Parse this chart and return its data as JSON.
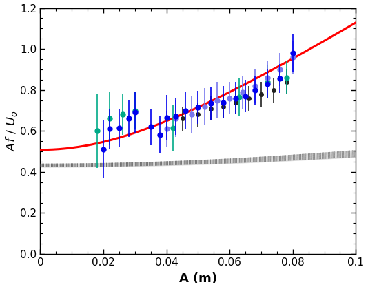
{
  "xlabel": "A (m)",
  "ylabel": "Af / U_o",
  "xlim": [
    0,
    0.1
  ],
  "ylim": [
    0,
    1.2
  ],
  "xticks": [
    0,
    0.02,
    0.04,
    0.06,
    0.08,
    0.1
  ],
  "yticks": [
    0,
    0.2,
    0.4,
    0.6,
    0.8,
    1.0,
    1.2
  ],
  "blue_dark_data": {
    "x": [
      0.02,
      0.022,
      0.025,
      0.028,
      0.03,
      0.035,
      0.038,
      0.04,
      0.043,
      0.046,
      0.05,
      0.054,
      0.058,
      0.062,
      0.065,
      0.068,
      0.072,
      0.076,
      0.08
    ],
    "y": [
      0.51,
      0.61,
      0.615,
      0.66,
      0.69,
      0.62,
      0.58,
      0.665,
      0.67,
      0.7,
      0.715,
      0.735,
      0.74,
      0.76,
      0.77,
      0.8,
      0.83,
      0.855,
      0.98
    ],
    "yerr": [
      0.14,
      0.1,
      0.09,
      0.09,
      0.1,
      0.09,
      0.09,
      0.11,
      0.09,
      0.09,
      0.08,
      0.08,
      0.08,
      0.08,
      0.08,
      0.07,
      0.07,
      0.07,
      0.09
    ],
    "color": "#0000ee"
  },
  "blue_light_data": {
    "x": [
      0.04,
      0.043,
      0.048,
      0.052,
      0.056,
      0.06,
      0.064,
      0.068,
      0.072,
      0.076,
      0.08
    ],
    "y": [
      0.61,
      0.66,
      0.68,
      0.72,
      0.75,
      0.76,
      0.79,
      0.82,
      0.86,
      0.9,
      0.96
    ],
    "yerr": [
      0.09,
      0.09,
      0.09,
      0.09,
      0.09,
      0.08,
      0.08,
      0.08,
      0.08,
      0.08,
      0.08
    ],
    "color": "#7777ee"
  },
  "teal_data": {
    "x": [
      0.018,
      0.022,
      0.026,
      0.03,
      0.042,
      0.063,
      0.072,
      0.078
    ],
    "y": [
      0.6,
      0.66,
      0.68,
      0.7,
      0.615,
      0.765,
      0.84,
      0.86
    ],
    "yerr": [
      0.18,
      0.13,
      0.1,
      0.09,
      0.11,
      0.09,
      0.08,
      0.08
    ],
    "color": "#00aa88"
  },
  "black_data": {
    "x": [
      0.045,
      0.05,
      0.054,
      0.058,
      0.062,
      0.066,
      0.07,
      0.074,
      0.078
    ],
    "y": [
      0.66,
      0.68,
      0.71,
      0.72,
      0.74,
      0.76,
      0.78,
      0.8,
      0.84
    ],
    "yerr": [
      0.06,
      0.06,
      0.06,
      0.06,
      0.06,
      0.06,
      0.06,
      0.06,
      0.06
    ],
    "color": "#222222"
  },
  "red_line": {
    "A0": 0.508,
    "b": 10.08,
    "comment": "St = sqrt(A0^2 + b^2 * A^2)"
  },
  "gray_band": {
    "comment": "St_gray = sqrt(c0^2 + cg^2 * A^2), band between two curves",
    "c0_low": 0.425,
    "c0_high": 0.44,
    "cg_low": 2.1,
    "cg_high": 2.5
  },
  "background_color": "#ffffff",
  "font_size_label": 13,
  "font_size_tick": 11,
  "marker_size": 6
}
